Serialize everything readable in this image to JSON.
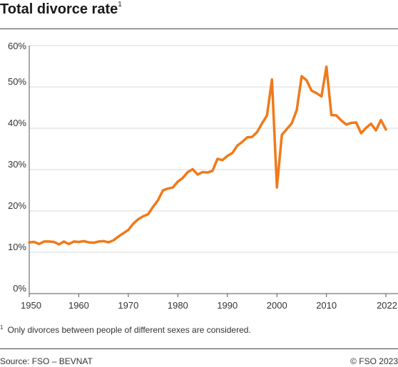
{
  "header": {
    "title": "Total divorce rate",
    "title_footnote_mark": "1"
  },
  "footnote": {
    "mark": "1",
    "text": "Only divorces between people of different sexes are considered."
  },
  "footer": {
    "source": "Source: FSO – BEVNAT",
    "copyright": "© FSO 2023"
  },
  "colors": {
    "line": "#f07a1a",
    "grid": "#d9d9d9",
    "axis": "#555555"
  },
  "chart_data": {
    "type": "line",
    "title": "Total divorce rate",
    "xlabel": "",
    "ylabel": "",
    "xlim": [
      1950,
      2022
    ],
    "ylim": [
      0,
      60
    ],
    "x_ticks": [
      1950,
      1960,
      1970,
      1980,
      1990,
      2000,
      2010,
      2022
    ],
    "y_ticks": [
      {
        "value": 0,
        "label": "0%"
      },
      {
        "value": 10,
        "label": "10%"
      },
      {
        "value": 20,
        "label": "20%"
      },
      {
        "value": 30,
        "label": "30%"
      },
      {
        "value": 40,
        "label": "40%"
      },
      {
        "value": 50,
        "label": "50%"
      },
      {
        "value": 60,
        "label": "60%"
      }
    ],
    "grid": true,
    "series": [
      {
        "x": [
          1950,
          1951,
          1952,
          1953,
          1954,
          1955,
          1956,
          1957,
          1958,
          1959,
          1960,
          1961,
          1962,
          1963,
          1964,
          1965,
          1966,
          1967,
          1968,
          1969,
          1970,
          1971,
          1972,
          1973,
          1974,
          1975,
          1976,
          1977,
          1978,
          1979,
          1980,
          1981,
          1982,
          1983,
          1984,
          1985,
          1986,
          1987,
          1988,
          1989,
          1990,
          1991,
          1992,
          1993,
          1994,
          1995,
          1996,
          1997,
          1998,
          1999,
          2000,
          2001,
          2002,
          2003,
          2004,
          2005,
          2006,
          2007,
          2008,
          2009,
          2010,
          2011,
          2012,
          2013,
          2014,
          2015,
          2016,
          2017,
          2018,
          2019,
          2020,
          2021,
          2022
        ],
        "values": [
          12.4,
          12.5,
          12.0,
          12.6,
          12.6,
          12.5,
          11.9,
          12.6,
          12.0,
          12.6,
          12.5,
          12.7,
          12.4,
          12.3,
          12.6,
          12.7,
          12.4,
          12.9,
          13.8,
          14.6,
          15.4,
          16.9,
          18.0,
          18.7,
          19.2,
          21.0,
          22.6,
          25.0,
          25.4,
          25.7,
          27.1,
          28.0,
          29.4,
          30.1,
          28.8,
          29.4,
          29.3,
          29.7,
          32.6,
          32.3,
          33.3,
          34.0,
          35.8,
          36.7,
          37.8,
          37.9,
          39.1,
          41.2,
          43.1,
          51.8,
          25.7,
          38.4,
          39.8,
          41.2,
          44.4,
          52.6,
          51.6,
          49.1,
          48.5,
          47.7,
          54.9,
          43.2,
          43.1,
          41.9,
          40.9,
          41.3,
          41.4,
          38.8,
          40.1,
          41.1,
          39.5,
          42.0,
          39.7
        ]
      }
    ]
  }
}
